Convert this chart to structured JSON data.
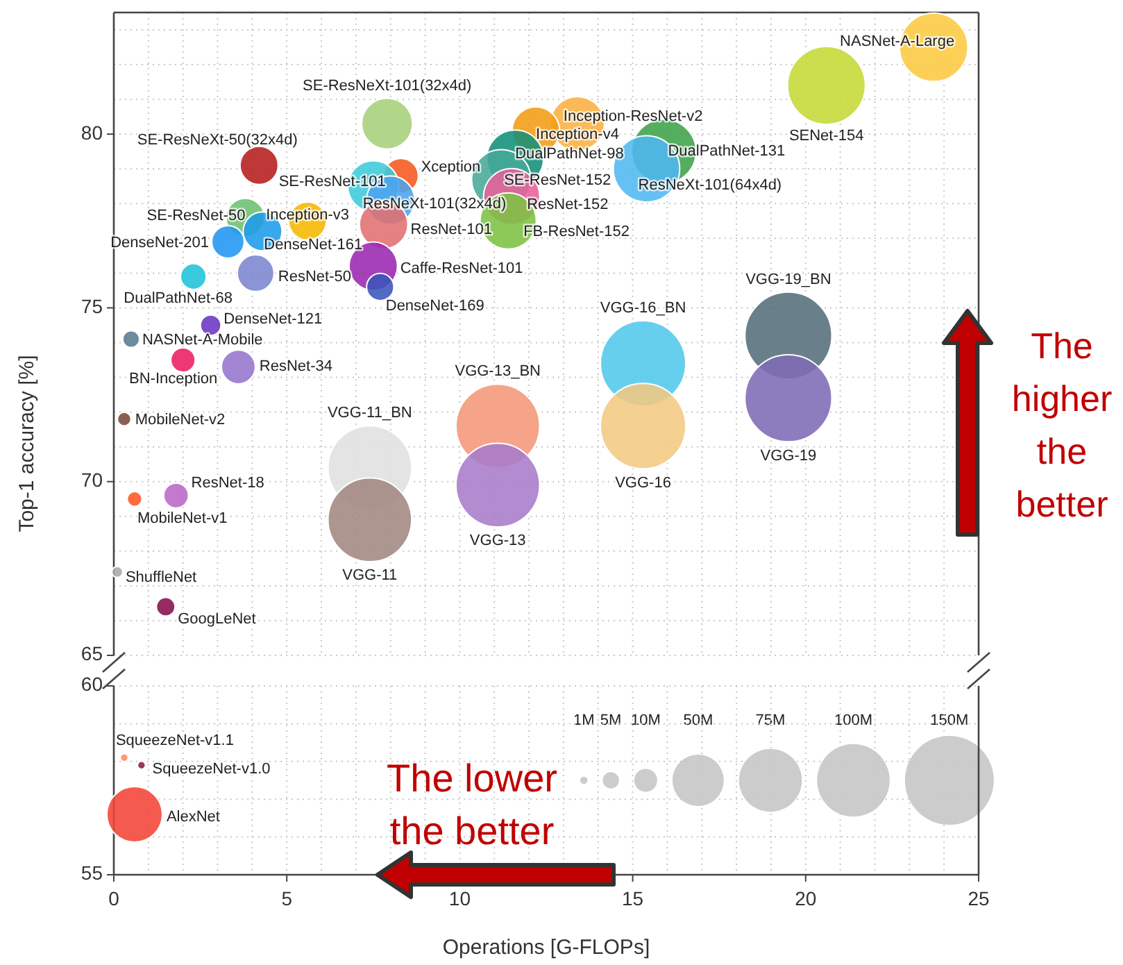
{
  "chart_data": [
    {
      "type": "bubble",
      "ylabel": "Top-1 accuracy [%]",
      "xlim": [
        0,
        25
      ],
      "xticks": [
        0,
        {
          "value": 1,
          "label": null
        },
        {
          "value": 2,
          "label": null
        },
        {
          "value": 3,
          "label": null
        },
        {
          "value": 4,
          "label": null
        },
        5,
        {
          "value": 6,
          "label": null
        },
        {
          "value": 7,
          "label": null
        },
        {
          "value": 8,
          "label": null
        },
        {
          "value": 9,
          "label": null
        },
        10,
        {
          "value": 11,
          "label": null
        },
        {
          "value": 12,
          "label": null
        },
        {
          "value": 13,
          "label": null
        },
        {
          "value": 14,
          "label": null
        },
        15,
        {
          "value": 16,
          "label": null
        },
        {
          "value": 17,
          "label": null
        },
        {
          "value": 18,
          "label": null
        },
        {
          "value": 19,
          "label": null
        },
        20,
        {
          "value": 21,
          "label": null
        },
        {
          "value": 22,
          "label": null
        },
        {
          "value": 23,
          "label": null
        },
        {
          "value": 24,
          "label": null
        },
        25
      ],
      "ylim": [
        65,
        83.5
      ],
      "yticks": [
        65,
        {
          "value": 66,
          "label": null
        },
        {
          "value": 67,
          "label": null
        },
        {
          "value": 68,
          "label": null
        },
        {
          "value": 69,
          "label": null
        },
        70,
        {
          "value": 71,
          "label": null
        },
        {
          "value": 72,
          "label": null
        },
        {
          "value": 73,
          "label": null
        },
        {
          "value": 74,
          "label": null
        },
        75,
        {
          "value": 76,
          "label": null
        },
        {
          "value": 77,
          "label": null
        },
        {
          "value": 78,
          "label": null
        },
        {
          "value": 79,
          "label": null
        },
        80,
        {
          "value": 81,
          "label": null
        },
        {
          "value": 82,
          "label": null
        },
        {
          "value": 83,
          "label": null
        }
      ],
      "tick_labels": "y",
      "grid": true,
      "size_legend": [
        {
          "value": 1,
          "label": "1M"
        },
        {
          "value": 5,
          "label": "5M"
        },
        {
          "value": 10,
          "label": "10M"
        },
        {
          "value": 50,
          "label": "50M"
        },
        {
          "value": 75,
          "label": "75M"
        },
        {
          "value": 100,
          "label": "100M"
        },
        {
          "value": 150,
          "label": "150M"
        }
      ],
      "annotations": [
        "The higher the better"
      ],
      "series": [
        {
          "name": "NASNet-A-Large",
          "color": "#fcc940",
          "x": [
            23.7
          ],
          "values": [
            82.5
          ],
          "sizes": [
            88.9
          ]
        },
        {
          "name": "SENet-154",
          "color": "#c5d936",
          "x": [
            20.6
          ],
          "values": [
            81.4
          ],
          "sizes": [
            115
          ]
        },
        {
          "name": "DualPathNet-131",
          "color": "#3ea34a",
          "x": [
            15.9
          ],
          "values": [
            79.5
          ],
          "sizes": [
            79
          ]
        },
        {
          "name": "ResNeXt-101(64x4d)",
          "color": "#4fb8f0",
          "x": [
            15.4
          ],
          "values": [
            79.0
          ],
          "sizes": [
            83.6
          ]
        },
        {
          "name": "Inception-ResNet-v2",
          "color": "#fbb040",
          "x": [
            13.4
          ],
          "values": [
            80.3
          ],
          "sizes": [
            55.8
          ]
        },
        {
          "name": "Inception-v4",
          "color": "#f39c12",
          "x": [
            12.2
          ],
          "values": [
            80.1
          ],
          "sizes": [
            42.7
          ]
        },
        {
          "name": "DualPathNet-98",
          "color": "#13907a",
          "x": [
            11.6
          ],
          "values": [
            79.3
          ],
          "sizes": [
            61.6
          ]
        },
        {
          "name": "SE-ResNet-152",
          "color": "#45a89a",
          "x": [
            11.2
          ],
          "values": [
            78.7
          ],
          "sizes": [
            66.8
          ]
        },
        {
          "name": "ResNet-152",
          "color": "#e8609a",
          "x": [
            11.5
          ],
          "values": [
            78.2
          ],
          "sizes": [
            60.2
          ]
        },
        {
          "name": "FB-ResNet-152",
          "color": "#7cc242",
          "x": [
            11.4
          ],
          "values": [
            77.5
          ],
          "sizes": [
            60.2
          ]
        },
        {
          "name": "SE-ResNeXt-101(32x4d)",
          "color": "#a6d07a",
          "x": [
            7.9
          ],
          "values": [
            80.3
          ],
          "sizes": [
            49
          ]
        },
        {
          "name": "Xception",
          "color": "#f5591f",
          "x": [
            8.3
          ],
          "values": [
            78.8
          ],
          "sizes": [
            22.9
          ]
        },
        {
          "name": "SE-ResNet-101",
          "color": "#3ccbdc",
          "x": [
            7.5
          ],
          "values": [
            78.5
          ],
          "sizes": [
            49.3
          ]
        },
        {
          "name": "ResNeXt-101(32x4d)",
          "color": "#4aa3ee",
          "x": [
            8.0
          ],
          "values": [
            78.1
          ],
          "sizes": [
            44.2
          ]
        },
        {
          "name": "ResNet-101",
          "color": "#e07070",
          "x": [
            7.8
          ],
          "values": [
            77.4
          ],
          "sizes": [
            44.5
          ]
        },
        {
          "name": "Caffe-ResNet-101",
          "color": "#9b27b0",
          "x": [
            7.5
          ],
          "values": [
            76.2
          ],
          "sizes": [
            44.5
          ]
        },
        {
          "name": "DenseNet-169",
          "color": "#3a55b8",
          "x": [
            7.7
          ],
          "values": [
            75.6
          ],
          "sizes": [
            14.1
          ]
        },
        {
          "name": "Inception-v3",
          "color": "#f5b800",
          "x": [
            5.6
          ],
          "values": [
            77.5
          ],
          "sizes": [
            27.2
          ]
        },
        {
          "name": "SE-ResNeXt-50(32x4d)",
          "color": "#b51d1d",
          "x": [
            4.2
          ],
          "values": [
            79.1
          ],
          "sizes": [
            27.6
          ]
        },
        {
          "name": "SE-ResNet-50",
          "color": "#6cc070",
          "x": [
            3.8
          ],
          "values": [
            77.6
          ],
          "sizes": [
            28
          ]
        },
        {
          "name": "DenseNet-161",
          "color": "#1e9be8",
          "x": [
            4.3
          ],
          "values": [
            77.2
          ],
          "sizes": [
            28.7
          ]
        },
        {
          "name": "DenseNet-201",
          "color": "#2196f3",
          "x": [
            3.3
          ],
          "values": [
            76.9
          ],
          "sizes": [
            20
          ]
        },
        {
          "name": "ResNet-50",
          "color": "#7b86cf",
          "x": [
            4.1
          ],
          "values": [
            76.0
          ],
          "sizes": [
            25.6
          ]
        },
        {
          "name": "DualPathNet-68",
          "color": "#1ec3d8",
          "x": [
            2.3
          ],
          "values": [
            75.9
          ],
          "sizes": [
            12.6
          ]
        },
        {
          "name": "DenseNet-121",
          "color": "#6a35c0",
          "x": [
            2.8
          ],
          "values": [
            74.5
          ],
          "sizes": [
            8
          ]
        },
        {
          "name": "NASNet-A-Mobile",
          "color": "#5a7a90",
          "x": [
            0.5
          ],
          "values": [
            74.1
          ],
          "sizes": [
            5.3
          ]
        },
        {
          "name": "BN-Inception",
          "color": "#e91e63",
          "x": [
            2.0
          ],
          "values": [
            73.5
          ],
          "sizes": [
            11.3
          ]
        },
        {
          "name": "ResNet-34",
          "color": "#9575cd",
          "x": [
            3.6
          ],
          "values": [
            73.3
          ],
          "sizes": [
            21.8
          ]
        },
        {
          "name": "MobileNet-v2",
          "color": "#7b4a3a",
          "x": [
            0.3
          ],
          "values": [
            71.8
          ],
          "sizes": [
            3.5
          ]
        },
        {
          "name": "ResNet-18",
          "color": "#ba68c8",
          "x": [
            1.8
          ],
          "values": [
            69.6
          ],
          "sizes": [
            11.7
          ]
        },
        {
          "name": "MobileNet-v1",
          "color": "#ff5722",
          "x": [
            0.6
          ],
          "values": [
            69.5
          ],
          "sizes": [
            4.2
          ]
        },
        {
          "name": "ShuffleNet",
          "color": "#aaaaaa",
          "x": [
            0.1
          ],
          "values": [
            67.4
          ],
          "sizes": [
            2.3
          ]
        },
        {
          "name": "GoogLeNet",
          "color": "#880e4f",
          "x": [
            1.5
          ],
          "values": [
            66.4
          ],
          "sizes": [
            6.6
          ]
        },
        {
          "name": "VGG-11_BN",
          "color": "#e0e0e0",
          "x": [
            7.4
          ],
          "values": [
            70.4
          ],
          "sizes": [
            132.9
          ]
        },
        {
          "name": "VGG-11",
          "color": "#a1887f",
          "x": [
            7.4
          ],
          "values": [
            68.9
          ],
          "sizes": [
            132.9
          ]
        },
        {
          "name": "VGG-13_BN",
          "color": "#f4977a",
          "x": [
            11.1
          ],
          "values": [
            71.6
          ],
          "sizes": [
            133
          ]
        },
        {
          "name": "VGG-13",
          "color": "#a77bca",
          "x": [
            11.1
          ],
          "values": [
            69.9
          ],
          "sizes": [
            133
          ]
        },
        {
          "name": "VGG-16_BN",
          "color": "#52c8ec",
          "x": [
            15.3
          ],
          "values": [
            73.4
          ],
          "sizes": [
            138.4
          ]
        },
        {
          "name": "VGG-16",
          "color": "#f2c982",
          "x": [
            15.3
          ],
          "values": [
            71.6
          ],
          "sizes": [
            138.4
          ]
        },
        {
          "name": "VGG-19_BN",
          "color": "#546e7a",
          "x": [
            19.5
          ],
          "values": [
            74.2
          ],
          "sizes": [
            143.7
          ]
        },
        {
          "name": "VGG-19",
          "color": "#7e6bb5",
          "x": [
            19.5
          ],
          "values": [
            72.4
          ],
          "sizes": [
            143.7
          ]
        }
      ]
    },
    {
      "type": "bubble",
      "xlabel": "Operations [G-FLOPs]",
      "xlim": [
        0,
        25
      ],
      "xticks": [
        0,
        {
          "value": 1,
          "label": null
        },
        {
          "value": 2,
          "label": null
        },
        {
          "value": 3,
          "label": null
        },
        {
          "value": 4,
          "label": null
        },
        5,
        {
          "value": 6,
          "label": null
        },
        {
          "value": 7,
          "label": null
        },
        {
          "value": 8,
          "label": null
        },
        {
          "value": 9,
          "label": null
        },
        10,
        {
          "value": 11,
          "label": null
        },
        {
          "value": 12,
          "label": null
        },
        {
          "value": 13,
          "label": null
        },
        {
          "value": 14,
          "label": null
        },
        15,
        {
          "value": 16,
          "label": null
        },
        {
          "value": 17,
          "label": null
        },
        {
          "value": 18,
          "label": null
        },
        {
          "value": 19,
          "label": null
        },
        20,
        {
          "value": 21,
          "label": null
        },
        {
          "value": 22,
          "label": null
        },
        {
          "value": 23,
          "label": null
        },
        {
          "value": 24,
          "label": null
        },
        25
      ],
      "ylim": [
        55,
        60
      ],
      "yticks": [
        55,
        {
          "value": 56,
          "label": null
        },
        {
          "value": 57,
          "label": null
        },
        {
          "value": 58,
          "label": null
        },
        {
          "value": 59,
          "label": null
        },
        60
      ],
      "grid": true,
      "annotations": [
        "The lower the better"
      ],
      "series": [
        {
          "name": "SqueezeNet-v1.1",
          "color": "#ff8a65",
          "x": [
            0.3
          ],
          "values": [
            58.1
          ],
          "sizes": [
            0.02
          ]
        },
        {
          "name": "SqueezeNet-v1.0",
          "color": "#8b1a4a",
          "x": [
            0.8
          ],
          "values": [
            57.9
          ],
          "sizes": [
            0.02
          ]
        },
        {
          "name": "AlexNet",
          "color": "#f44336",
          "x": [
            0.6
          ],
          "values": [
            56.6
          ],
          "sizes": [
            1
          ]
        }
      ]
    }
  ]
}
